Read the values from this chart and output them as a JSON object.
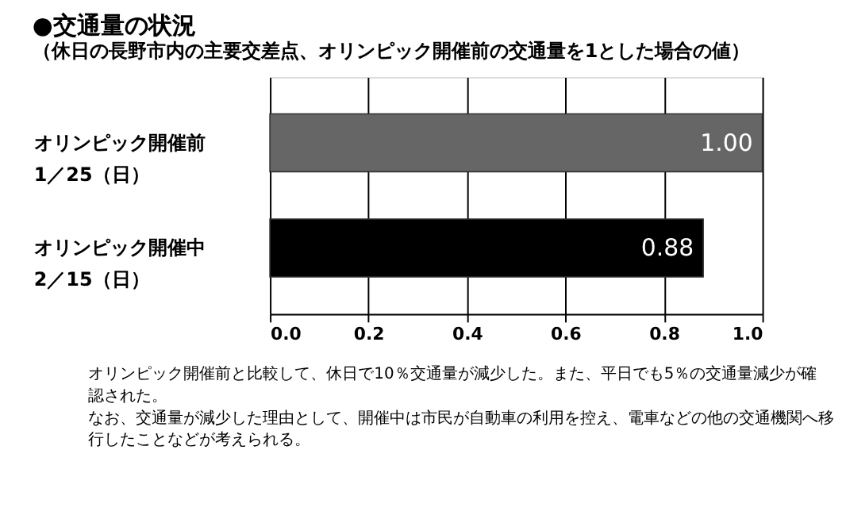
{
  "chart_data": {
    "type": "bar",
    "orientation": "horizontal",
    "title": "●交通量の状況",
    "subtitle": "（休日の長野市内の主要交差点、オリンピック開催前の交通量を1とした場合の値）",
    "categories": [
      "オリンピック開催前 1／25（日）",
      "オリンピック開催中 2／15（日）"
    ],
    "values": [
      1.0,
      0.88
    ],
    "colors": [
      "#666666",
      "#000000"
    ],
    "value_labels": [
      "1.00",
      "0.88"
    ],
    "xlim": [
      0,
      1.0
    ],
    "xticks": [
      {
        "value": 0,
        "label": "0.0"
      },
      0.2,
      0.4,
      0.6,
      0.8,
      {
        "value": 1.0,
        "label": "1.0"
      }
    ],
    "grid": "x",
    "annotations": [
      "オリンピック開催前と比較して、休日で10％交通量が減少した。また、平日でも5％の交通量減少が確認された。",
      "なお、交通量が減少した理由として、開催中は市民が自動車の利用を控え、電車などの他の交通機関へ移行したことなどが考えられる。"
    ]
  }
}
